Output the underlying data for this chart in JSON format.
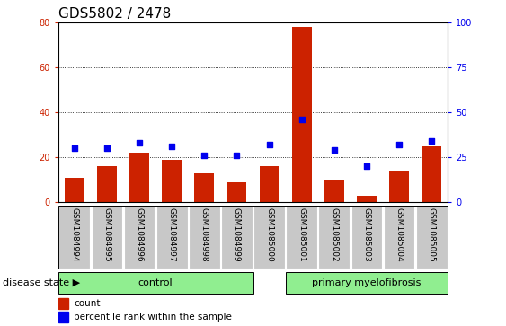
{
  "title": "GDS5802 / 2478",
  "samples": [
    "GSM1084994",
    "GSM1084995",
    "GSM1084996",
    "GSM1084997",
    "GSM1084998",
    "GSM1084999",
    "GSM1085000",
    "GSM1085001",
    "GSM1085002",
    "GSM1085003",
    "GSM1085004",
    "GSM1085005"
  ],
  "counts": [
    11,
    16,
    22,
    19,
    13,
    9,
    16,
    78,
    10,
    3,
    14,
    25
  ],
  "percentiles": [
    30,
    30,
    33,
    31,
    26,
    26,
    32,
    46,
    29,
    20,
    32,
    34
  ],
  "control_indices": [
    0,
    1,
    2,
    3,
    4,
    5
  ],
  "pmf_indices": [
    6,
    7,
    8,
    9,
    10,
    11
  ],
  "bar_color": "#CC2200",
  "dot_color": "#0000EE",
  "left_ylim": [
    0,
    80
  ],
  "right_ylim": [
    0,
    100
  ],
  "left_yticks": [
    0,
    20,
    40,
    60,
    80
  ],
  "right_yticks": [
    0,
    25,
    50,
    75,
    100
  ],
  "bg_color": "#FFFFFF",
  "tick_area_color": "#C8C8C8",
  "green_color": "#90EE90",
  "title_fontsize": 11,
  "axis_tick_fontsize": 7,
  "sample_fontsize": 6.5,
  "group_fontsize": 8,
  "legend_fontsize": 7.5,
  "disease_state_fontsize": 8
}
